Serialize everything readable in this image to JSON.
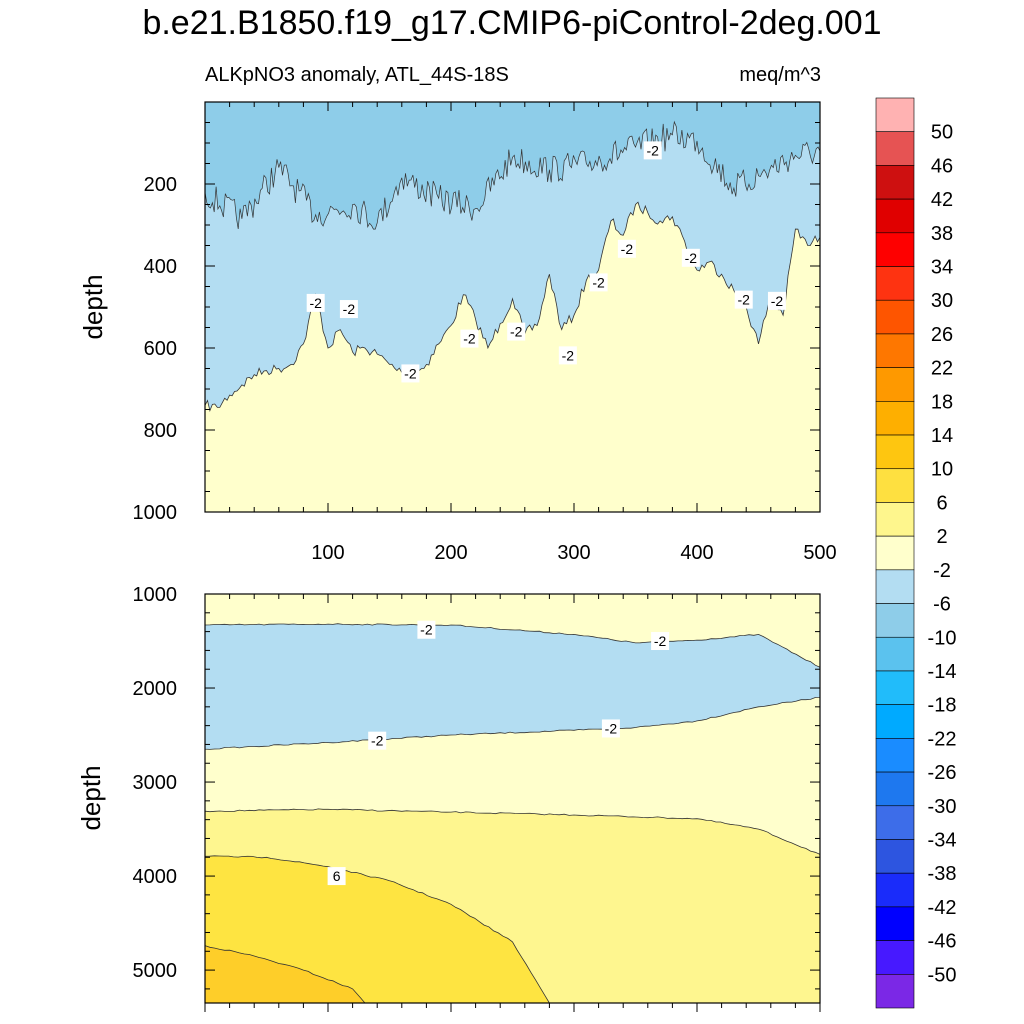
{
  "chart_data": {
    "type": "contour",
    "title": "b.e21.B1850.f19_g17.CMIP6-piControl-2deg.001",
    "subtitle_left": "ALKpNO3 anomaly, ATL_44S-18S",
    "subtitle_right": "meq/m^3",
    "ylabel": "depth",
    "colors": {
      "fill_m6_m2": "#b3ddf2",
      "fill_m10_m6": "#8ecde9",
      "fill_m2_2": "#ffffcc",
      "fill_2_6": "#fef68f",
      "fill_6_10": "#fee441",
      "fill_10_14": "#fece29"
    },
    "upper_panel": {
      "x_range": [
        0,
        500
      ],
      "y_range": [
        0,
        1000
      ],
      "x_ticks": [
        "100",
        "200",
        "300",
        "400",
        "500"
      ],
      "y_ticks": [
        "200",
        "400",
        "600",
        "800",
        "1000"
      ],
      "zero_contour_depth": [
        [
          0,
          740
        ],
        [
          10,
          745
        ],
        [
          20,
          715
        ],
        [
          30,
          690
        ],
        [
          40,
          665
        ],
        [
          50,
          655
        ],
        [
          60,
          650
        ],
        [
          70,
          640
        ],
        [
          80,
          590
        ],
        [
          90,
          470
        ],
        [
          100,
          600
        ],
        [
          110,
          555
        ],
        [
          120,
          610
        ],
        [
          130,
          600
        ],
        [
          140,
          615
        ],
        [
          150,
          640
        ],
        [
          160,
          660
        ],
        [
          170,
          665
        ],
        [
          180,
          640
        ],
        [
          190,
          590
        ],
        [
          200,
          545
        ],
        [
          210,
          470
        ],
        [
          220,
          530
        ],
        [
          230,
          600
        ],
        [
          240,
          540
        ],
        [
          250,
          480
        ],
        [
          260,
          565
        ],
        [
          270,
          545
        ],
        [
          280,
          420
        ],
        [
          290,
          555
        ],
        [
          300,
          520
        ],
        [
          310,
          435
        ],
        [
          320,
          410
        ],
        [
          330,
          290
        ],
        [
          340,
          325
        ],
        [
          350,
          250
        ],
        [
          360,
          270
        ],
        [
          370,
          290
        ],
        [
          380,
          280
        ],
        [
          390,
          340
        ],
        [
          400,
          410
        ],
        [
          410,
          390
        ],
        [
          420,
          420
        ],
        [
          430,
          460
        ],
        [
          440,
          500
        ],
        [
          450,
          590
        ],
        [
          460,
          470
        ],
        [
          470,
          520
        ],
        [
          480,
          310
        ],
        [
          490,
          350
        ],
        [
          500,
          330
        ]
      ],
      "minus6_depth_wavy": [
        [
          0,
          220
        ],
        [
          30,
          285
        ],
        [
          60,
          160
        ],
        [
          90,
          275
        ],
        [
          120,
          250
        ],
        [
          140,
          295
        ],
        [
          160,
          185
        ],
        [
          190,
          235
        ],
        [
          220,
          260
        ],
        [
          250,
          135
        ],
        [
          280,
          165
        ],
        [
          310,
          150
        ],
        [
          350,
          110
        ],
        [
          380,
          80
        ],
        [
          400,
          95
        ],
        [
          430,
          210
        ],
        [
          450,
          180
        ],
        [
          480,
          130
        ],
        [
          500,
          120
        ]
      ],
      "labels": [
        {
          "text": "-2",
          "x": 90,
          "y": 490
        },
        {
          "text": "-2",
          "x": 117,
          "y": 505
        },
        {
          "text": "-2",
          "x": 167,
          "y": 662
        },
        {
          "text": "-2",
          "x": 215,
          "y": 577
        },
        {
          "text": "-2",
          "x": 253,
          "y": 560
        },
        {
          "text": "-2",
          "x": 295,
          "y": 618
        },
        {
          "text": "-2",
          "x": 320,
          "y": 440
        },
        {
          "text": "-2",
          "x": 343,
          "y": 358
        },
        {
          "text": "-2",
          "x": 364,
          "y": 118
        },
        {
          "text": "-2",
          "x": 395,
          "y": 380
        },
        {
          "text": "-2",
          "x": 438,
          "y": 482
        },
        {
          "text": "-2",
          "x": 465,
          "y": 485
        }
      ]
    },
    "lower_panel": {
      "x_range": [
        0,
        500
      ],
      "y_range": [
        1000,
        5350
      ],
      "y_ticks": [
        "1000",
        "2000",
        "3000",
        "4000",
        "5000"
      ],
      "contours": [
        {
          "level": -2,
          "depth": [
            [
              0,
              1330
            ],
            [
              100,
              1320
            ],
            [
              200,
              1330
            ],
            [
              300,
              1430
            ],
            [
              350,
              1520
            ],
            [
              400,
              1490
            ],
            [
              450,
              1430
            ],
            [
              500,
              1780
            ]
          ]
        },
        {
          "level": -2,
          "depth": [
            [
              0,
              2650
            ],
            [
              100,
              2580
            ],
            [
              200,
              2500
            ],
            [
              300,
              2450
            ],
            [
              350,
              2420
            ],
            [
              400,
              2350
            ],
            [
              450,
              2200
            ],
            [
              500,
              2100
            ]
          ]
        },
        {
          "level": 2,
          "depth": [
            [
              0,
              3310
            ],
            [
              100,
              3290
            ],
            [
              200,
              3320
            ],
            [
              300,
              3350
            ],
            [
              400,
              3390
            ],
            [
              450,
              3500
            ],
            [
              500,
              3770
            ]
          ]
        },
        {
          "level": 6,
          "depth": [
            [
              0,
              3790
            ],
            [
              50,
              3800
            ],
            [
              100,
              3900
            ],
            [
              150,
              4050
            ],
            [
              200,
              4300
            ],
            [
              250,
              4700
            ],
            [
              280,
              5350
            ]
          ]
        },
        {
          "level": 10,
          "depth": [
            [
              0,
              4740
            ],
            [
              40,
              4850
            ],
            [
              80,
              5000
            ],
            [
              120,
              5200
            ],
            [
              130,
              5350
            ]
          ]
        }
      ],
      "labels": [
        {
          "text": "-2",
          "x": 180,
          "y": 1380
        },
        {
          "text": "-2",
          "x": 370,
          "y": 1500
        },
        {
          "text": "-2",
          "x": 140,
          "y": 2560
        },
        {
          "text": "-2",
          "x": 330,
          "y": 2430
        },
        {
          "text": "6",
          "x": 107,
          "y": 4000
        }
      ]
    },
    "colorbar": {
      "labels": [
        "50",
        "46",
        "42",
        "38",
        "34",
        "30",
        "26",
        "22",
        "18",
        "14",
        "10",
        "6",
        "2",
        "-2",
        "-6",
        "-10",
        "-14",
        "-18",
        "-22",
        "-26",
        "-30",
        "-34",
        "-38",
        "-42",
        "-46",
        "-50"
      ],
      "colors": [
        "#ffb2b2",
        "#e65353",
        "#ce1010",
        "#e00000",
        "#fe0000",
        "#fe3311",
        "#fe5500",
        "#fe7700",
        "#fe9900",
        "#feaf00",
        "#fec610",
        "#fee040",
        "#fef68d",
        "#ffffcc",
        "#b3ddf2",
        "#8ecde9",
        "#5bc2ee",
        "#21bcfa",
        "#00aaff",
        "#1a8cff",
        "#1e78ef",
        "#3d6de9",
        "#2d55e0",
        "#1a2cfa",
        "#0000ff",
        "#4719ff",
        "#7b28e6"
      ]
    }
  }
}
